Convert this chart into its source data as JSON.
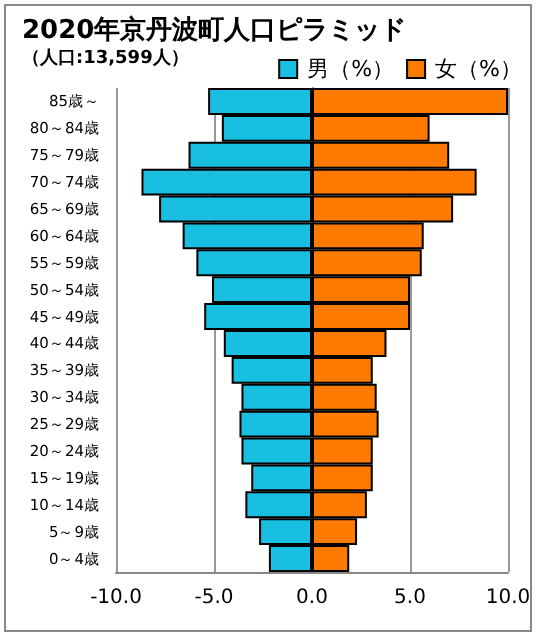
{
  "chart_data": {
    "type": "bar",
    "orientation": "horizontal",
    "title": "2020年京丹波町人口ピラミッド",
    "subtitle": "（人口:13,599人）",
    "categories": [
      "85歳～",
      "80～84歳",
      "75～79歳",
      "70～74歳",
      "65～69歳",
      "60～64歳",
      "55～59歳",
      "50～54歳",
      "45～49歳",
      "40～44歳",
      "35～39歳",
      "30～34歳",
      "25～29歳",
      "20～24歳",
      "15～19歳",
      "10～14歳",
      "5～9歳",
      "0～4歳"
    ],
    "series": [
      {
        "name": "男（%）",
        "color": "#19bfe0",
        "values": [
          -5.3,
          -4.6,
          -6.3,
          -8.7,
          -7.8,
          -6.6,
          -5.9,
          -5.1,
          -5.5,
          -4.5,
          -4.1,
          -3.6,
          -3.7,
          -3.6,
          -3.1,
          -3.4,
          -2.7,
          -2.2
        ]
      },
      {
        "name": "女（%）",
        "color": "#ff7a00",
        "values": [
          10.0,
          6.0,
          7.0,
          8.4,
          7.2,
          5.7,
          5.6,
          5.0,
          5.0,
          3.8,
          3.1,
          3.3,
          3.4,
          3.1,
          3.1,
          2.8,
          2.3,
          1.9
        ]
      }
    ],
    "xlim": [
      -10,
      10
    ],
    "xticks": [
      {
        "value": -10,
        "label": "-10.0"
      },
      {
        "value": -5,
        "label": "-5.0"
      },
      {
        "value": 0,
        "label": "0.0"
      },
      {
        "value": 5,
        "label": "5.0"
      },
      {
        "value": 10,
        "label": "10.0"
      }
    ],
    "grid": "x",
    "stacked": true,
    "legend": "top right"
  }
}
